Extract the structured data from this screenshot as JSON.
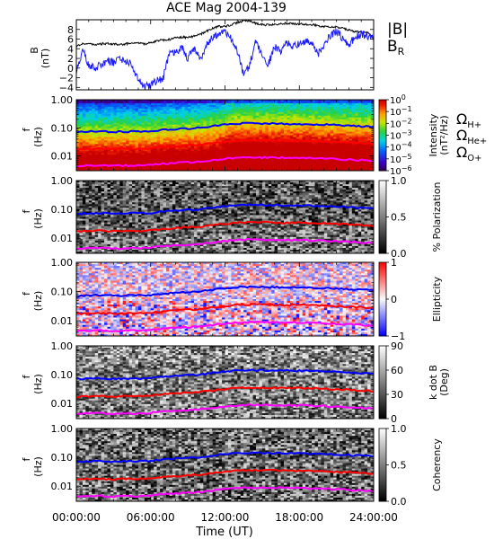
{
  "chart_data": {
    "type": "spectrogram",
    "title": "ACE Mag 2004-139",
    "xlabel": "Time (UT)",
    "x_ticks": [
      "00:00:00",
      "06:00:00",
      "12:00:00",
      "18:00:00",
      "24:00:00"
    ],
    "xlim_hours": [
      0,
      24
    ],
    "field_panel": {
      "ylabel": "B",
      "yunit": "(nT)",
      "ylim": [
        -4.5,
        10
      ],
      "y_ticks": [
        "8",
        "6",
        "4",
        "2",
        "0",
        "−2",
        "−4"
      ],
      "y_tick_values": [
        8,
        6,
        4,
        2,
        0,
        -2,
        -4
      ],
      "legend": [
        {
          "name": "|B|",
          "color": "#000000"
        },
        {
          "name": "B",
          "sub": "R",
          "color": "#1a1aff"
        }
      ],
      "series": [
        {
          "name": "|B|",
          "color": "#000000",
          "x": [
            0,
            0.5,
            1,
            1.5,
            2,
            2.5,
            3,
            3.5,
            4,
            4.5,
            5,
            5.5,
            6,
            6.5,
            7,
            7.5,
            8,
            8.5,
            9,
            9.5,
            10,
            10.5,
            11,
            11.5,
            12,
            12.5,
            13,
            13.5,
            14,
            14.5,
            15,
            15.5,
            16,
            16.5,
            17,
            17.5,
            18,
            18.5,
            19,
            19.5,
            20,
            20.5,
            21,
            21.5,
            22,
            22.5,
            23,
            23.5,
            24
          ],
          "values": [
            4.5,
            5.0,
            5.0,
            4.8,
            5.0,
            5.1,
            5.0,
            4.9,
            5.0,
            5.1,
            5.2,
            5.0,
            5.2,
            5.6,
            5.8,
            5.9,
            6.2,
            6.4,
            6.3,
            6.6,
            7.0,
            7.6,
            8.2,
            8.6,
            8.6,
            9.0,
            9.4,
            9.8,
            9.7,
            9.2,
            9.0,
            8.9,
            9.0,
            9.2,
            9.3,
            9.2,
            9.1,
            9.0,
            9.0,
            8.8,
            8.6,
            8.4,
            8.5,
            8.2,
            7.9,
            7.6,
            7.5,
            7.3,
            6.2
          ]
        },
        {
          "name": "B_R",
          "color": "#1a1aff",
          "x": [
            0,
            0.5,
            1,
            1.5,
            2,
            2.5,
            3,
            3.5,
            4,
            4.5,
            5,
            5.5,
            6,
            6.5,
            7,
            7.5,
            8,
            8.5,
            9,
            9.5,
            10,
            10.5,
            11,
            11.5,
            12,
            12.5,
            13,
            13.5,
            14,
            14.5,
            15,
            15.5,
            16,
            16.5,
            17,
            17.5,
            18,
            18.5,
            19,
            19.5,
            20,
            20.5,
            21,
            21.5,
            22,
            22.5,
            23,
            23.5,
            24
          ],
          "values": [
            -1.0,
            3.8,
            0.4,
            0.0,
            0.8,
            1.6,
            1.2,
            1.8,
            1.5,
            0.8,
            -2.6,
            -3.8,
            -3.6,
            -2.6,
            -2.2,
            3.4,
            3.0,
            4.4,
            2.0,
            4.0,
            1.6,
            5.0,
            6.4,
            7.0,
            7.6,
            6.0,
            3.6,
            -1.6,
            0.8,
            5.8,
            2.2,
            0.8,
            4.4,
            3.6,
            5.2,
            4.6,
            5.2,
            5.6,
            5.4,
            2.8,
            4.6,
            6.8,
            7.6,
            6.2,
            4.8,
            6.4,
            7.0,
            6.6,
            6.4
          ]
        }
      ]
    },
    "freq_panels": {
      "ylabel": "f",
      "yunit": "(Hz)",
      "ylim": [
        0.003,
        1.0
      ],
      "y_scale": "log",
      "y_ticks": [
        "1.00",
        "0.10",
        "0.01"
      ],
      "y_tick_values": [
        1.0,
        0.1,
        0.01
      ],
      "lines_x": [
        0,
        1,
        2,
        3,
        4,
        5,
        6,
        7,
        8,
        9,
        10,
        11,
        12,
        13,
        14,
        15,
        16,
        17,
        18,
        19,
        20,
        21,
        22,
        23,
        24
      ],
      "gyro_lines": [
        {
          "name": "Ω_H+",
          "color": "#0000ff",
          "values": [
            0.07,
            0.074,
            0.074,
            0.072,
            0.074,
            0.074,
            0.076,
            0.085,
            0.09,
            0.095,
            0.1,
            0.115,
            0.13,
            0.14,
            0.145,
            0.142,
            0.14,
            0.139,
            0.137,
            0.135,
            0.13,
            0.125,
            0.12,
            0.114,
            0.11
          ]
        },
        {
          "name": "Ω_He+",
          "color": "#ff0000",
          "values": [
            0.017,
            0.018,
            0.018,
            0.0175,
            0.018,
            0.018,
            0.019,
            0.021,
            0.0225,
            0.024,
            0.025,
            0.0285,
            0.032,
            0.035,
            0.036,
            0.0355,
            0.035,
            0.0345,
            0.0342,
            0.0338,
            0.0325,
            0.031,
            0.03,
            0.0285,
            0.027
          ]
        },
        {
          "name": "Ω_O+",
          "color": "#ff00ff",
          "values": [
            0.0042,
            0.0046,
            0.0046,
            0.0044,
            0.0046,
            0.0045,
            0.0048,
            0.0053,
            0.0057,
            0.006,
            0.0063,
            0.0071,
            0.008,
            0.0087,
            0.009,
            0.0089,
            0.0088,
            0.0087,
            0.0086,
            0.0085,
            0.0082,
            0.0078,
            0.0075,
            0.0071,
            0.0068
          ]
        }
      ],
      "gyro_legend": [
        {
          "symbol": "Ω",
          "sub": "H+",
          "color": "#0000ff"
        },
        {
          "symbol": "Ω",
          "sub": "He+",
          "color": "#ff0000"
        },
        {
          "symbol": "Ω",
          "sub": "O+",
          "color": "#ff00ff"
        }
      ],
      "panels": [
        {
          "id": "intensity",
          "colormap": "rainbow",
          "colorbar_label": "Intensity",
          "colorbar_unit": "(nT²/Hz)",
          "colorbar_log": true,
          "colorbar_range": [
            1e-06,
            1
          ],
          "colorbar_ticks": [
            {
              "base": "10",
              "exp": "0",
              "value": 0
            },
            {
              "base": "10",
              "exp": "−1",
              "value": -1
            },
            {
              "base": "10",
              "exp": "−2",
              "value": -2
            },
            {
              "base": "10",
              "exp": "−3",
              "value": -3
            },
            {
              "base": "10",
              "exp": "−4",
              "value": -4
            },
            {
              "base": "10",
              "exp": "−5",
              "value": -5
            },
            {
              "base": "10",
              "exp": "−6",
              "value": -6
            }
          ]
        },
        {
          "id": "polarization",
          "colormap": "gray",
          "colorbar_label": "% Polarization",
          "colorbar_range": [
            0,
            1
          ],
          "colorbar_ticks": [
            {
              "label": "1.0",
              "value": 1.0
            },
            {
              "label": "0.5",
              "value": 0.5
            },
            {
              "label": "0.0",
              "value": 0.0
            }
          ]
        },
        {
          "id": "ellipticity",
          "colormap": "bluewhitered",
          "colorbar_label": "Ellipticity",
          "colorbar_range": [
            -1,
            1
          ],
          "colorbar_ticks": [
            {
              "label": "1",
              "value": 1
            },
            {
              "label": "0",
              "value": 0
            },
            {
              "label": "−1",
              "value": -1
            }
          ]
        },
        {
          "id": "kdotb",
          "colormap": "gray",
          "colorbar_label": "k dot B",
          "colorbar_unit": "(Deg)",
          "colorbar_range": [
            0,
            90
          ],
          "colorbar_ticks": [
            {
              "label": "90",
              "value": 90
            },
            {
              "label": "60",
              "value": 60
            },
            {
              "label": "30",
              "value": 30
            },
            {
              "label": "0",
              "value": 0
            }
          ]
        },
        {
          "id": "coherency",
          "colormap": "gray",
          "colorbar_label": "Coherency",
          "colorbar_range": [
            0,
            1
          ],
          "colorbar_ticks": [
            {
              "label": "1.0",
              "value": 1.0
            },
            {
              "label": "0.5",
              "value": 0.5
            },
            {
              "label": "0.0",
              "value": 0.0
            }
          ]
        }
      ]
    }
  }
}
